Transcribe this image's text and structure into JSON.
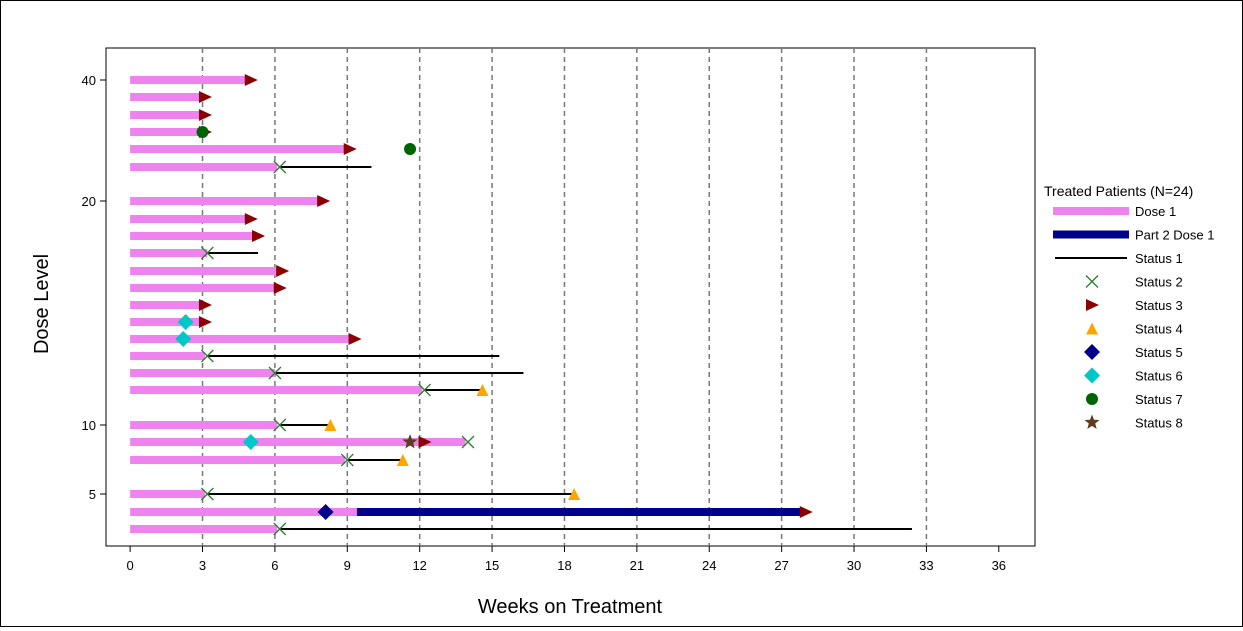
{
  "chart_data": {
    "type": "swimmer",
    "xlabel": "Weeks on Treatment",
    "ylabel": "Dose Level",
    "xlim": [
      -1,
      37.5
    ],
    "xticks": [
      0,
      3,
      6,
      9,
      12,
      15,
      18,
      21,
      24,
      27,
      30,
      33,
      36
    ],
    "ylim": [
      0.5,
      45
    ],
    "yticks": [
      {
        "label": "5",
        "row": 5
      },
      {
        "label": "10",
        "row": 10
      },
      {
        "label": "20",
        "row": 20
      },
      {
        "label": "40",
        "row": 40
      }
    ],
    "vertical_gridlines": [
      3,
      6,
      9,
      12,
      15,
      18,
      21,
      24,
      27,
      30,
      33
    ],
    "colors": {
      "dose1": "#ee82ee",
      "part2": "#00008b",
      "status1": "#000000",
      "status2": "#2e7d32",
      "status3": "#8b0000",
      "status4": "#ffa500",
      "status5": "#00008b",
      "status6": "#00c8c8",
      "status7": "#006400",
      "status8": "#5c3d1e"
    },
    "legend": {
      "title": "Treated Patients (N=24)",
      "placement": "right",
      "entries": [
        {
          "label": "Dose 1",
          "kind": "bar",
          "color": "#ee82ee"
        },
        {
          "label": "Part 2 Dose 1",
          "kind": "bar",
          "color": "#00008b"
        },
        {
          "label": "Status 1",
          "kind": "line",
          "color": "#000000"
        },
        {
          "label": "Status 2",
          "kind": "x",
          "color": "#2e7d32"
        },
        {
          "label": "Status 3",
          "kind": "tri-right",
          "color": "#8b0000"
        },
        {
          "label": "Status 4",
          "kind": "tri-up",
          "color": "#ffa500"
        },
        {
          "label": "Status 5",
          "kind": "diamond",
          "color": "#00008b"
        },
        {
          "label": "Status 6",
          "kind": "diamond",
          "color": "#00c8c8"
        },
        {
          "label": "Status 7",
          "kind": "circle",
          "color": "#006400"
        },
        {
          "label": "Status 8",
          "kind": "star",
          "color": "#5c3d1e"
        }
      ]
    },
    "patients": [
      {
        "row": 40,
        "dose1": [
          0,
          4.8
        ],
        "markers": [
          {
            "status": 3,
            "x": 5.0
          }
        ]
      },
      {
        "row": 39,
        "dose1": [
          0,
          3.0
        ],
        "markers": [
          {
            "status": 3,
            "x": 3.1
          }
        ]
      },
      {
        "row": 38,
        "dose1": [
          0,
          3.0
        ],
        "markers": [
          {
            "status": 3,
            "x": 3.1
          }
        ]
      },
      {
        "row": 37,
        "dose1": [
          0,
          3.0
        ],
        "markers": [
          {
            "status": 3,
            "x": 3.1
          },
          {
            "status": 7,
            "x": 3.0
          }
        ]
      },
      {
        "row": 36,
        "dose1": [
          0,
          9.0
        ],
        "markers": [
          {
            "status": 3,
            "x": 9.1
          },
          {
            "status": 7,
            "x": 11.6
          }
        ]
      },
      {
        "row": 35,
        "dose1": [
          0,
          6.1
        ],
        "status1": [
          6.2,
          10.0
        ],
        "markers": [
          {
            "status": 2,
            "x": 6.2
          }
        ]
      },
      {
        "row": 20,
        "dose1": [
          0,
          7.9
        ],
        "markers": [
          {
            "status": 3,
            "x": 8.0
          }
        ]
      },
      {
        "row": 19,
        "dose1": [
          0,
          4.8
        ],
        "markers": [
          {
            "status": 3,
            "x": 5.0
          }
        ]
      },
      {
        "row": 18,
        "dose1": [
          0,
          5.1
        ],
        "markers": [
          {
            "status": 3,
            "x": 5.3
          }
        ]
      },
      {
        "row": 17,
        "dose1": [
          0,
          3.2
        ],
        "status1": [
          3.2,
          5.3
        ],
        "markers": [
          {
            "status": 2,
            "x": 3.2
          }
        ]
      },
      {
        "row": 16,
        "dose1": [
          0,
          6.1
        ],
        "markers": [
          {
            "status": 3,
            "x": 6.3
          }
        ]
      },
      {
        "row": 15,
        "dose1": [
          0,
          6.0
        ],
        "markers": [
          {
            "status": 3,
            "x": 6.2
          }
        ]
      },
      {
        "row": 14,
        "dose1": [
          0,
          3.0
        ],
        "markers": [
          {
            "status": 3,
            "x": 3.1
          }
        ]
      },
      {
        "row": 13,
        "dose1": [
          0,
          3.0
        ],
        "markers": [
          {
            "status": 3,
            "x": 3.1
          },
          {
            "status": 6,
            "x": 2.3
          }
        ]
      },
      {
        "row": 12,
        "dose1": [
          0,
          9.1
        ],
        "markers": [
          {
            "status": 3,
            "x": 9.3
          },
          {
            "status": 6,
            "x": 2.2
          }
        ]
      },
      {
        "row": 11,
        "dose1": [
          0,
          3.1
        ],
        "status1": [
          3.2,
          15.3
        ],
        "markers": [
          {
            "status": 2,
            "x": 3.2
          }
        ]
      },
      {
        "row": 10.5,
        "dose1": [
          0,
          6.0
        ],
        "status1": [
          6.0,
          16.3
        ],
        "markers": [
          {
            "status": 2,
            "x": 6.0
          }
        ]
      },
      {
        "row": 10.2,
        "dose1": [
          0,
          12.1
        ],
        "status1": [
          12.2,
          14.5
        ],
        "markers": [
          {
            "status": 2,
            "x": 12.2
          },
          {
            "status": 4,
            "x": 14.6
          }
        ]
      },
      {
        "row": 10,
        "dose1": [
          0,
          6.1
        ],
        "status1": [
          6.2,
          8.3
        ],
        "markers": [
          {
            "status": 2,
            "x": 6.2
          },
          {
            "status": 4,
            "x": 8.3
          }
        ]
      },
      {
        "row": 9,
        "dose1": [
          0,
          13.9
        ],
        "markers": [
          {
            "status": 6,
            "x": 5.0
          },
          {
            "status": 8,
            "x": 11.6
          },
          {
            "status": 3,
            "x": 12.2
          },
          {
            "status": 2,
            "x": 14.0
          }
        ]
      },
      {
        "row": 8,
        "dose1": [
          0,
          8.9
        ],
        "status1": [
          9.0,
          11.3
        ],
        "markers": [
          {
            "status": 2,
            "x": 9.0
          },
          {
            "status": 4,
            "x": 11.3
          }
        ]
      },
      {
        "row": 5,
        "dose1": [
          0,
          3.1
        ],
        "status1": [
          3.2,
          18.4
        ],
        "markers": [
          {
            "status": 2,
            "x": 3.2
          },
          {
            "status": 4,
            "x": 18.4
          }
        ]
      },
      {
        "row": 4,
        "dose1": [
          0,
          9.4
        ],
        "part2": [
          9.4,
          27.8
        ],
        "markers": [
          {
            "status": 5,
            "x": 8.1
          },
          {
            "status": 3,
            "x": 28.0
          }
        ]
      },
      {
        "row": 3,
        "dose1": [
          0,
          6.1
        ],
        "status1": [
          6.2,
          32.4
        ],
        "markers": [
          {
            "status": 2,
            "x": 6.2
          }
        ]
      }
    ]
  }
}
